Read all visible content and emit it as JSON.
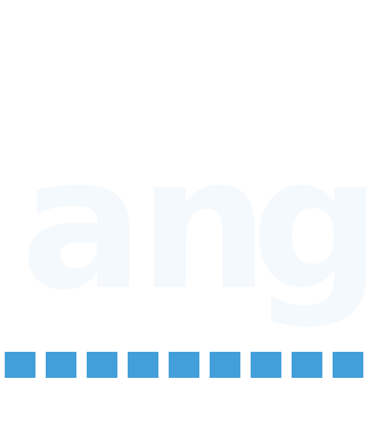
{
  "word": {
    "letters": [
      "a",
      "n",
      "g"
    ]
  },
  "slots": {
    "count": 9,
    "color": "#429fda"
  },
  "letter_color": "#f4f9fd"
}
